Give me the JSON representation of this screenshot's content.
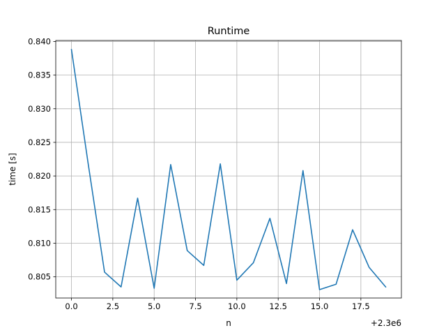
{
  "chart_data": {
    "type": "line",
    "title": "Runtime",
    "xlabel": "n",
    "ylabel": "time [s]",
    "x_offset_label": "+2.3e6",
    "xlim": [
      -0.95,
      19.95
    ],
    "ylim": [
      0.80185,
      0.84015
    ],
    "xticks": [
      0,
      2.5,
      5,
      7.5,
      10,
      12.5,
      15,
      17.5
    ],
    "xtick_labels": [
      "0.0",
      "2.5",
      "5.0",
      "7.5",
      "10.0",
      "12.5",
      "15.0",
      "17.5"
    ],
    "yticks": [
      0.805,
      0.81,
      0.815,
      0.82,
      0.825,
      0.83,
      0.835,
      0.84
    ],
    "ytick_labels": [
      "0.805",
      "0.810",
      "0.815",
      "0.820",
      "0.825",
      "0.830",
      "0.835",
      "0.840"
    ],
    "grid": true,
    "series": [
      {
        "color": "#1f77b4",
        "x": [
          0,
          1,
          2,
          3,
          4,
          5,
          6,
          7,
          8,
          9,
          10,
          11,
          12,
          13,
          14,
          15,
          16,
          17,
          18,
          19
        ],
        "y": [
          0.8388,
          0.822,
          0.8057,
          0.8035,
          0.8167,
          0.8033,
          0.8217,
          0.8089,
          0.8067,
          0.8218,
          0.8045,
          0.8071,
          0.8137,
          0.804,
          0.8208,
          0.8031,
          0.8039,
          0.812,
          0.8064,
          0.8035
        ]
      }
    ]
  }
}
